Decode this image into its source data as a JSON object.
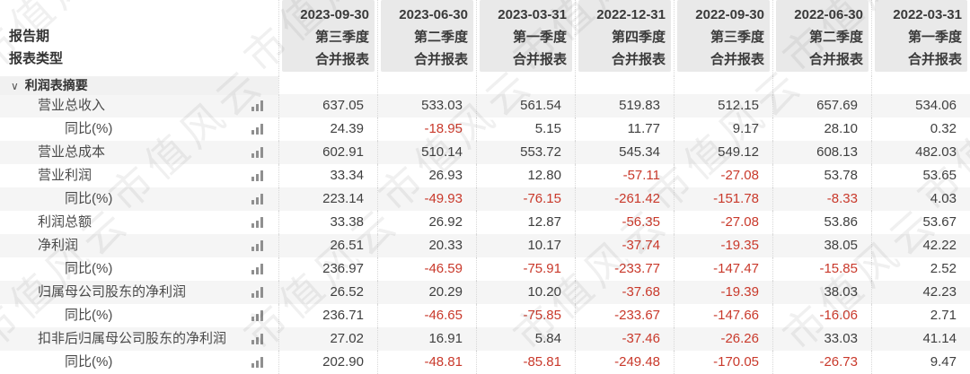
{
  "header": {
    "row_label_1": "报告期",
    "row_label_2": "报表类型",
    "columns": [
      {
        "date": "2023-09-30",
        "quarter": "第三季度",
        "type": "合并报表"
      },
      {
        "date": "2023-06-30",
        "quarter": "第二季度",
        "type": "合并报表"
      },
      {
        "date": "2023-03-31",
        "quarter": "第一季度",
        "type": "合并报表"
      },
      {
        "date": "2022-12-31",
        "quarter": "第四季度",
        "type": "合并报表"
      },
      {
        "date": "2022-09-30",
        "quarter": "第三季度",
        "type": "合并报表"
      },
      {
        "date": "2022-06-30",
        "quarter": "第二季度",
        "type": "合并报表"
      },
      {
        "date": "2022-03-31",
        "quarter": "第一季度",
        "type": "合并报表"
      }
    ]
  },
  "section": {
    "caret": "∨",
    "label": "利润表摘要"
  },
  "rows": [
    {
      "label": "营业总收入",
      "indent": 1,
      "values": [
        "637.05",
        "533.03",
        "561.54",
        "519.83",
        "512.15",
        "657.69",
        "534.06"
      ]
    },
    {
      "label": "同比(%)",
      "indent": 2,
      "values": [
        "24.39",
        "-18.95",
        "5.15",
        "11.77",
        "9.17",
        "28.10",
        "0.32"
      ]
    },
    {
      "label": "营业总成本",
      "indent": 1,
      "values": [
        "602.91",
        "510.14",
        "553.72",
        "545.34",
        "549.12",
        "608.13",
        "482.03"
      ]
    },
    {
      "label": "营业利润",
      "indent": 1,
      "values": [
        "33.34",
        "26.93",
        "12.80",
        "-57.11",
        "-27.08",
        "53.78",
        "53.65"
      ]
    },
    {
      "label": "同比(%)",
      "indent": 2,
      "values": [
        "223.14",
        "-49.93",
        "-76.15",
        "-261.42",
        "-151.78",
        "-8.33",
        "4.03"
      ]
    },
    {
      "label": "利润总额",
      "indent": 1,
      "values": [
        "33.38",
        "26.92",
        "12.87",
        "-56.35",
        "-27.08",
        "53.86",
        "53.67"
      ]
    },
    {
      "label": "净利润",
      "indent": 1,
      "values": [
        "26.51",
        "20.33",
        "10.17",
        "-37.74",
        "-19.35",
        "38.05",
        "42.22"
      ]
    },
    {
      "label": "同比(%)",
      "indent": 2,
      "values": [
        "236.97",
        "-46.59",
        "-75.91",
        "-233.77",
        "-147.47",
        "-15.85",
        "2.52"
      ]
    },
    {
      "label": "归属母公司股东的净利润",
      "indent": 1,
      "values": [
        "26.52",
        "20.29",
        "10.20",
        "-37.68",
        "-19.39",
        "38.03",
        "42.23"
      ]
    },
    {
      "label": "同比(%)",
      "indent": 2,
      "values": [
        "236.71",
        "-46.65",
        "-75.85",
        "-233.67",
        "-147.66",
        "-16.06",
        "2.71"
      ]
    },
    {
      "label": "扣非后归属母公司股东的净利润",
      "indent": 1,
      "values": [
        "27.02",
        "16.91",
        "5.84",
        "-37.46",
        "-26.26",
        "33.03",
        "41.14"
      ]
    },
    {
      "label": "同比(%)",
      "indent": 2,
      "values": [
        "202.90",
        "-48.81",
        "-85.81",
        "-249.48",
        "-170.05",
        "-26.73",
        "9.47"
      ]
    }
  ],
  "icons": {
    "row_chart": "bar-chart-icon",
    "section_caret": "chevron-down-icon"
  },
  "colors": {
    "negative": "#c9392b",
    "header_bg": "#e9e9e9",
    "stripe_bg": "#f5f5f5",
    "icon_gray": "#8f8f8f"
  },
  "watermark": {
    "text": "市值风云"
  }
}
